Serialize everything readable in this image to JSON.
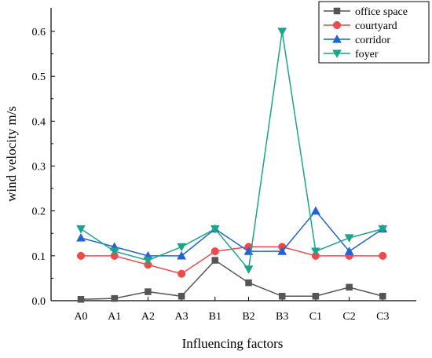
{
  "chart_data": {
    "type": "line",
    "xlabel": "Influencing factors",
    "ylabel": "wind velocity  m/s",
    "categories": [
      "A0",
      "A1",
      "A2",
      "A3",
      "B1",
      "B2",
      "B3",
      "C1",
      "C2",
      "C3"
    ],
    "ylim": [
      0,
      0.65
    ],
    "yticks": [
      "0.0",
      "0.1",
      "0.2",
      "0.3",
      "0.4",
      "0.5",
      "0.6"
    ],
    "ytick_values": [
      0,
      0.1,
      0.2,
      0.3,
      0.4,
      0.5,
      0.6
    ],
    "grid": false,
    "legend_position": "top-right",
    "series": [
      {
        "name": "office space",
        "color": "#555555",
        "marker": "square",
        "values": [
          0.003,
          0.005,
          0.02,
          0.01,
          0.09,
          0.04,
          0.01,
          0.01,
          0.03,
          0.01
        ]
      },
      {
        "name": "courtyard",
        "color": "#ef4a4a",
        "marker": "circle",
        "values": [
          0.1,
          0.1,
          0.08,
          0.06,
          0.11,
          0.12,
          0.12,
          0.1,
          0.1,
          0.1
        ]
      },
      {
        "name": "corridor",
        "color": "#1f63d6",
        "marker": "triangle-up",
        "values": [
          0.14,
          0.12,
          0.1,
          0.1,
          0.16,
          0.11,
          0.11,
          0.2,
          0.11,
          0.16
        ]
      },
      {
        "name": "foyer",
        "color": "#1aa58a",
        "marker": "triangle-down",
        "values": [
          0.16,
          0.11,
          0.09,
          0.12,
          0.16,
          0.07,
          0.6,
          0.11,
          0.14,
          0.16
        ]
      }
    ]
  }
}
